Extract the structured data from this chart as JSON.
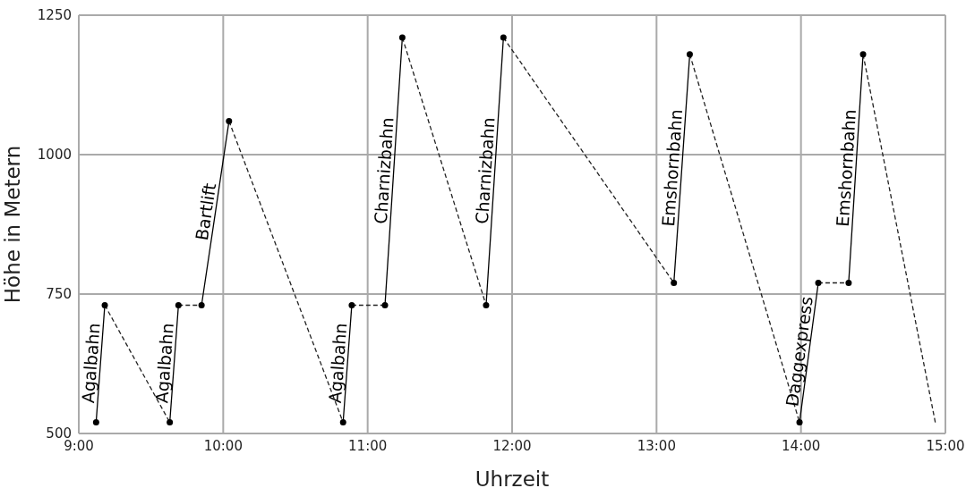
{
  "chart_data": {
    "type": "line",
    "xlabel": "Uhrzeit",
    "ylabel": "Höhe in Metern",
    "xlim": [
      9,
      15
    ],
    "xticks": [
      {
        "value": 9,
        "label": "9:00"
      },
      {
        "value": 10,
        "label": "10:00"
      },
      {
        "value": 11,
        "label": "11:00"
      },
      {
        "value": 12,
        "label": "12:00"
      },
      {
        "value": 13,
        "label": "13:00"
      },
      {
        "value": 14,
        "label": "14:00"
      },
      {
        "value": 15,
        "label": "15:00"
      }
    ],
    "ylim": [
      500,
      1250
    ],
    "yticks": [
      500,
      750,
      1000,
      1250
    ],
    "grid": true,
    "series": [
      {
        "color": "#222222",
        "line_style": "dashed",
        "marker": "none",
        "x": [
          9.18,
          9.63,
          null,
          9.69,
          9.85,
          null,
          10.04,
          10.83,
          null,
          10.89,
          11.12,
          null,
          11.24,
          11.82,
          null,
          11.94,
          13.12,
          null,
          13.23,
          13.99,
          null,
          14.12,
          14.33,
          null,
          14.43,
          14.93
        ],
        "values": [
          730,
          520,
          null,
          730,
          730,
          null,
          1060,
          520,
          null,
          730,
          730,
          null,
          1210,
          730,
          null,
          1210,
          770,
          null,
          1180,
          520,
          null,
          770,
          770,
          null,
          1180,
          520
        ]
      },
      {
        "color": "#000000",
        "line_style": "solid",
        "marker": "circle",
        "x": [
          9.12,
          9.18,
          null,
          9.63,
          9.69,
          null,
          9.85,
          10.04,
          null,
          10.83,
          10.89,
          null,
          11.12,
          11.24,
          null,
          11.82,
          11.94,
          null,
          13.12,
          13.23,
          null,
          13.99,
          14.12,
          null,
          14.33,
          14.43
        ],
        "values": [
          520,
          730,
          null,
          520,
          730,
          null,
          730,
          1060,
          null,
          520,
          730,
          null,
          730,
          1210,
          null,
          730,
          1210,
          null,
          770,
          1180,
          null,
          520,
          770,
          null,
          770,
          1180
        ]
      }
    ],
    "annotations": [
      {
        "text": "Agalbahn",
        "x": 9.15,
        "y": 625
      },
      {
        "text": "Agalbahn",
        "x": 9.66,
        "y": 625
      },
      {
        "text": "Bartlift",
        "x": 9.945,
        "y": 895
      },
      {
        "text": "Agalbahn",
        "x": 10.86,
        "y": 625
      },
      {
        "text": "Charnizbahn",
        "x": 11.18,
        "y": 970
      },
      {
        "text": "Charnizbahn",
        "x": 11.88,
        "y": 970
      },
      {
        "text": "Emshornbahn",
        "x": 13.175,
        "y": 975
      },
      {
        "text": "Daggexpress",
        "x": 14.055,
        "y": 645
      },
      {
        "text": "Emshornbahn",
        "x": 14.38,
        "y": 975
      }
    ]
  }
}
